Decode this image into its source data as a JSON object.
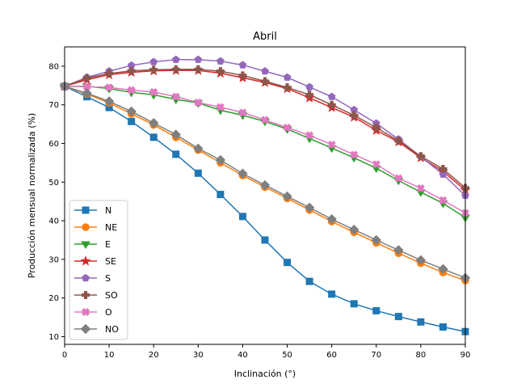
{
  "chart_data": {
    "type": "line",
    "title": "Abril",
    "xlabel": "Inclinación (°)",
    "ylabel": "Producción mensual normalizada (%)",
    "xlim": [
      0,
      90
    ],
    "ylim": [
      8,
      85
    ],
    "xticks": [
      0,
      10,
      20,
      30,
      40,
      50,
      60,
      70,
      80,
      90
    ],
    "yticks": [
      10,
      20,
      30,
      40,
      50,
      60,
      70,
      80
    ],
    "grid": false,
    "legend_position": "lower-left",
    "x": [
      0,
      5,
      10,
      15,
      20,
      25,
      30,
      35,
      40,
      45,
      50,
      55,
      60,
      65,
      70,
      75,
      80,
      85,
      90
    ],
    "series": [
      {
        "name": "N",
        "color": "#1f77b4",
        "marker": "square",
        "values": [
          74.8,
          72.1,
          69.3,
          65.7,
          61.6,
          57.2,
          52.3,
          46.8,
          41.1,
          35.0,
          29.2,
          24.3,
          21.0,
          18.5,
          16.7,
          15.2,
          13.8,
          12.5,
          11.3
        ]
      },
      {
        "name": "NE",
        "color": "#ff7f0e",
        "marker": "circle",
        "values": [
          74.8,
          72.8,
          70.5,
          67.7,
          64.8,
          61.6,
          58.3,
          55.0,
          51.7,
          48.7,
          45.8,
          42.8,
          39.8,
          37.0,
          34.3,
          31.6,
          29.0,
          26.6,
          24.5
        ]
      },
      {
        "name": "E",
        "color": "#2ca02c",
        "marker": "triangle-down",
        "values": [
          74.8,
          74.8,
          74.2,
          73.2,
          72.6,
          71.4,
          70.5,
          68.6,
          67.3,
          65.7,
          63.7,
          61.3,
          58.8,
          56.3,
          53.6,
          50.4,
          47.4,
          44.5,
          40.8
        ]
      },
      {
        "name": "SE",
        "color": "#d62728",
        "marker": "star",
        "values": [
          74.8,
          76.5,
          77.8,
          78.4,
          78.8,
          78.9,
          78.9,
          78.2,
          77.0,
          75.8,
          74.2,
          71.8,
          69.3,
          66.8,
          63.4,
          60.4,
          56.3,
          52.8,
          47.9
        ]
      },
      {
        "name": "S",
        "color": "#9467bd",
        "marker": "pentagon",
        "values": [
          74.8,
          77.1,
          78.7,
          80.2,
          81.1,
          81.7,
          81.7,
          81.3,
          80.3,
          78.7,
          77.1,
          74.6,
          72.1,
          68.7,
          65.2,
          61.1,
          56.6,
          52.0,
          46.5
        ]
      },
      {
        "name": "SO",
        "color": "#8c564b",
        "marker": "plus",
        "values": [
          74.8,
          76.9,
          78.1,
          78.8,
          79.1,
          79.2,
          79.2,
          78.7,
          77.6,
          76.1,
          74.5,
          72.6,
          70.0,
          67.3,
          64.1,
          60.7,
          56.7,
          53.4,
          48.5
        ]
      },
      {
        "name": "O",
        "color": "#e377c2",
        "marker": "x",
        "values": [
          74.8,
          74.7,
          74.5,
          73.8,
          73.3,
          72.1,
          70.6,
          69.4,
          68.0,
          66.1,
          64.1,
          62.1,
          59.7,
          57.1,
          54.6,
          51.0,
          48.4,
          45.3,
          42.0
        ]
      },
      {
        "name": "NO",
        "color": "#7f7f7f",
        "marker": "diamond",
        "values": [
          74.8,
          73.0,
          70.9,
          68.3,
          65.3,
          62.3,
          58.7,
          55.7,
          52.2,
          49.2,
          46.3,
          43.4,
          40.4,
          37.7,
          35.0,
          32.4,
          29.8,
          27.5,
          25.2
        ]
      }
    ]
  }
}
